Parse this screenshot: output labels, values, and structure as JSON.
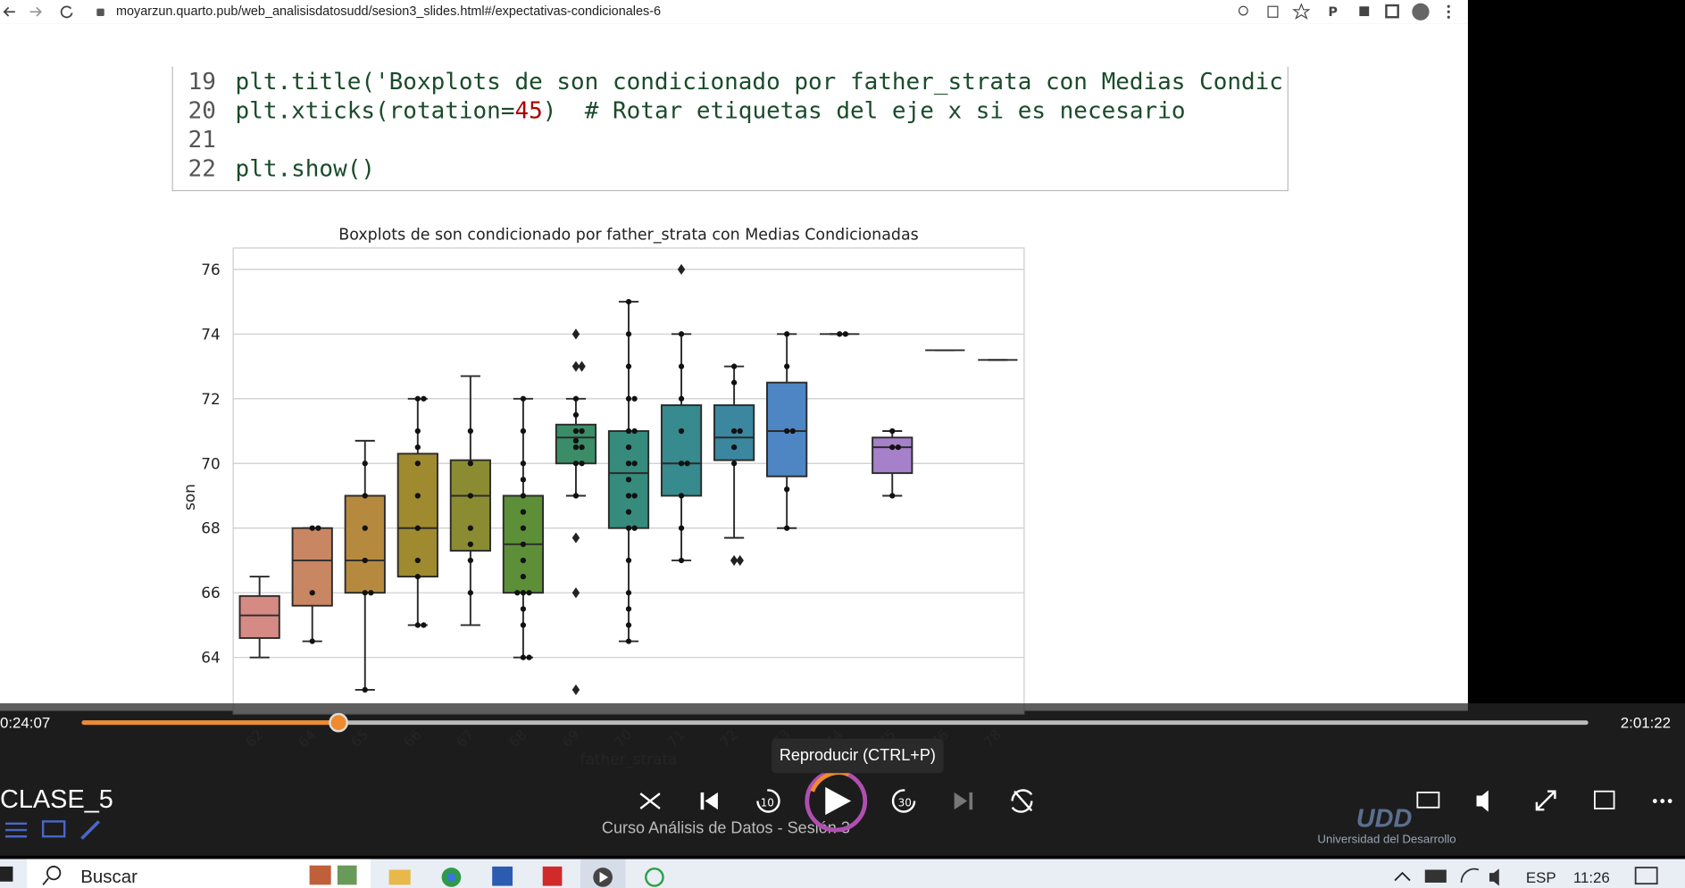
{
  "browser": {
    "url": "moyarzun.quarto.pub/web_analisisdatosudd/sesion3_slides.html#/expectativas-condicionales-6"
  },
  "code": {
    "lines": [
      {
        "number": "19",
        "tokens": [
          "plt.title('Boxplots de son condicionado por father_strata con Medias Condic"
        ]
      },
      {
        "number": "20",
        "tokens": [
          "plt.xticks(rotation=",
          "45",
          ")  # Rotar etiquetas del eje x si es necesario"
        ]
      },
      {
        "number": "21"
      },
      {
        "number": "22",
        "tokens": [
          "plt.show()"
        ]
      }
    ]
  },
  "chart_data": {
    "type": "box",
    "title": "Boxplots de son condicionado por father_strata con Medias Condicionadas",
    "x_label": "father_strata",
    "y_label": "son",
    "categories": [
      "62",
      "64",
      "65",
      "66",
      "67",
      "68",
      "69",
      "70",
      "71",
      "72",
      "73",
      "74",
      "75",
      "76",
      "78"
    ],
    "ylim": [
      62.25,
      76.66
    ],
    "yticks": [
      64,
      66,
      68,
      70,
      72,
      74,
      76
    ],
    "grid": true,
    "boxes": [
      {
        "min": 64,
        "q1": 64.6,
        "median": 65.3,
        "q3": 65.9,
        "max": 66.5,
        "color": "#d68a84"
      },
      {
        "min": 64.5,
        "q1": 65.6,
        "median": 67,
        "q3": 68,
        "max": 68,
        "color": "#c98663",
        "points": [
          68,
          68,
          66,
          64.5
        ]
      },
      {
        "min": 63,
        "q1": 66,
        "median": 67,
        "q3": 69,
        "max": 70.7,
        "color": "#b68a3e",
        "points": [
          70,
          69,
          68,
          67,
          66,
          66,
          63
        ]
      },
      {
        "min": 65,
        "q1": 66.5,
        "median": 68,
        "q3": 70.3,
        "max": 72,
        "color": "#a08a30",
        "points": [
          72,
          72,
          71,
          70.5,
          70,
          69,
          68,
          67,
          66.5,
          65,
          65
        ]
      },
      {
        "min": 65,
        "q1": 67.3,
        "median": 69,
        "q3": 70.1,
        "max": 72.7,
        "color": "#8b8c32",
        "points": [
          71,
          70,
          69,
          68,
          67.5,
          67,
          66
        ]
      },
      {
        "min": 64,
        "q1": 66,
        "median": 67.5,
        "q3": 69,
        "max": 72,
        "color": "#5c8f38",
        "points": [
          72,
          71,
          70,
          69.5,
          69,
          68.5,
          68,
          67.5,
          67,
          66.5,
          66,
          66,
          66,
          65.5,
          65,
          64,
          64
        ]
      },
      {
        "min": 69,
        "q1": 70,
        "median": 70.8,
        "q3": 71.2,
        "max": 72,
        "color": "#3b8d68",
        "points": [
          72,
          71.5,
          71,
          71,
          70.7,
          70.5,
          70.5,
          70,
          70,
          69
        ],
        "outliers": [
          74,
          73,
          73,
          67.7,
          66,
          63
        ]
      },
      {
        "min": 64.5,
        "q1": 68,
        "median": 69.7,
        "q3": 71,
        "max": 75,
        "color": "#368b7c",
        "points": [
          75,
          74,
          73,
          72,
          72,
          71,
          71,
          70.5,
          70,
          70,
          69.5,
          69,
          69,
          68.5,
          68,
          68,
          67,
          66,
          65.5,
          65,
          64.5
        ]
      },
      {
        "min": 67,
        "q1": 69,
        "median": 70,
        "q3": 71.8,
        "max": 74,
        "color": "#378a8e",
        "points": [
          74,
          73,
          72,
          71,
          70,
          70,
          69,
          68,
          67
        ],
        "outliers": [
          76
        ]
      },
      {
        "min": 67.7,
        "q1": 70.1,
        "median": 70.8,
        "q3": 71.8,
        "max": 73,
        "color": "#3b879f",
        "points": [
          73,
          72.5,
          71,
          71,
          70.5,
          70
        ],
        "outliers": [
          67,
          67
        ]
      },
      {
        "min": 68,
        "q1": 69.6,
        "median": 71,
        "q3": 72.5,
        "max": 74,
        "color": "#4e86c4",
        "points": [
          74,
          73,
          71,
          71,
          69.2,
          68
        ]
      },
      {
        "min": 74,
        "q1": 74,
        "median": 74,
        "q3": 74,
        "max": 74,
        "color": "#6b80cc",
        "points": [
          74,
          74
        ]
      },
      {
        "min": 69,
        "q1": 69.7,
        "median": 70.5,
        "q3": 70.8,
        "max": 71,
        "color": "#a680c9",
        "points": [
          71,
          70.5,
          70.5,
          69
        ]
      },
      {
        "min": 73.5,
        "q1": 73.5,
        "median": 73.5,
        "q3": 73.5,
        "max": 73.5,
        "color": "#c07cbd"
      },
      {
        "min": 73.2,
        "q1": 73.2,
        "median": 73.2,
        "q3": 73.2,
        "max": 73.2,
        "color": "#d07fa8"
      }
    ]
  },
  "player": {
    "time_elapsed": "0:24:07",
    "time_total": "2:01:22",
    "title": "CLASE_5",
    "subtitle": "Curso Análisis de Datos - Sesión 3",
    "tooltip": "Reproducir (CTRL+P)",
    "skip_back": "10",
    "skip_forward": "30",
    "logo": "UDD",
    "logo_caption": "Universidad del Desarrollo"
  },
  "taskbar": {
    "search": "Buscar",
    "language": "ESP",
    "clock": "11:26"
  }
}
